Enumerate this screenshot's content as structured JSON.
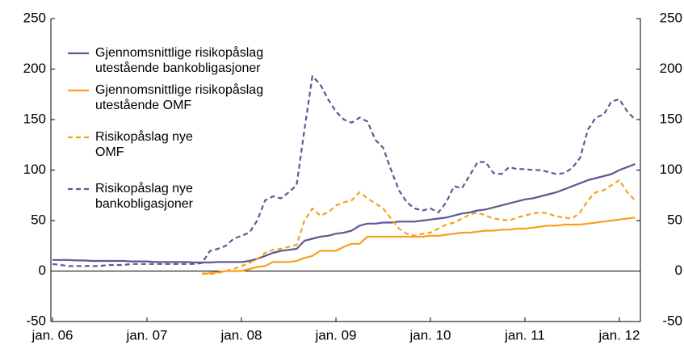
{
  "chart_data": {
    "type": "line",
    "categories": [
      "jan. 06",
      null,
      null,
      null,
      null,
      null,
      null,
      null,
      null,
      null,
      null,
      null,
      "jan. 07",
      null,
      null,
      null,
      null,
      null,
      null,
      null,
      null,
      null,
      null,
      null,
      "jan. 08",
      null,
      null,
      null,
      null,
      null,
      null,
      null,
      null,
      null,
      null,
      null,
      "jan. 09",
      null,
      null,
      null,
      null,
      null,
      null,
      null,
      null,
      null,
      null,
      null,
      "jan. 10",
      null,
      null,
      null,
      null,
      null,
      null,
      null,
      null,
      null,
      null,
      null,
      "jan. 11",
      null,
      null,
      null,
      null,
      null,
      null,
      null,
      null,
      null,
      null,
      null,
      "jan. 12",
      null,
      null
    ],
    "series": [
      {
        "name": "Gjennomsnittlige risikopåslag utestående bankobligasjoner",
        "color": "#5a5a94",
        "dashed": false,
        "values": [
          11,
          11,
          11,
          10.5,
          10.5,
          10,
          10,
          10,
          10,
          10,
          9.5,
          9.5,
          9.5,
          9,
          9,
          9,
          9,
          9,
          8.5,
          8.5,
          8.5,
          9,
          9,
          9,
          9,
          10,
          12,
          15,
          18,
          20,
          21,
          22,
          30,
          32,
          34,
          35,
          37,
          38,
          40,
          45,
          47,
          47,
          48,
          48,
          49,
          49,
          49,
          50,
          51,
          52,
          53,
          55,
          57,
          58,
          60,
          61,
          63,
          65,
          67,
          69,
          71,
          72,
          74,
          76,
          78,
          81,
          84,
          87,
          90,
          92,
          94,
          96,
          100,
          103,
          106
        ]
      },
      {
        "name": "Gjennomsnittlige risikopåslag utestående OMF",
        "color": "#f5a11d",
        "dashed": false,
        "values": [
          null,
          null,
          null,
          null,
          null,
          null,
          null,
          null,
          null,
          null,
          null,
          null,
          null,
          null,
          null,
          null,
          null,
          null,
          null,
          -3,
          -2,
          -1,
          0,
          0,
          0,
          2,
          4,
          5,
          9,
          9,
          9,
          10,
          13,
          15,
          20,
          20,
          20,
          24,
          27,
          27,
          34,
          34,
          34,
          34,
          34,
          34,
          34,
          34,
          35,
          35,
          36,
          37,
          38,
          38,
          39,
          40,
          40,
          41,
          41,
          42,
          42,
          43,
          44,
          45,
          45,
          46,
          46,
          46,
          47,
          48,
          49,
          50,
          51,
          52,
          53
        ]
      },
      {
        "name": "Risikopåslag nye OMF",
        "color": "#f5a11d",
        "dashed": true,
        "values": [
          null,
          null,
          null,
          null,
          null,
          null,
          null,
          null,
          null,
          null,
          null,
          null,
          null,
          null,
          null,
          null,
          null,
          null,
          null,
          -2,
          -3,
          -2,
          0,
          2,
          5,
          8,
          12,
          18,
          21,
          22,
          24,
          26,
          50,
          62,
          55,
          58,
          65,
          68,
          70,
          78,
          72,
          67,
          62,
          52,
          42,
          37,
          35,
          37,
          38,
          42,
          46,
          48,
          52,
          56,
          58,
          55,
          52,
          51,
          50,
          53,
          55,
          57,
          58,
          57,
          54,
          53,
          52,
          58,
          70,
          78,
          80,
          85,
          90,
          78,
          70
        ]
      },
      {
        "name": "Risikopåslag nye bankobligasjoner",
        "color": "#5a5a94",
        "dashed": true,
        "values": [
          7,
          6,
          5,
          5,
          5,
          5,
          5,
          6,
          6,
          6,
          7,
          7,
          7,
          7,
          7,
          7,
          7,
          7,
          7,
          8,
          20,
          22,
          25,
          32,
          35,
          38,
          50,
          70,
          74,
          72,
          78,
          85,
          140,
          193,
          185,
          170,
          158,
          150,
          147,
          152,
          148,
          130,
          122,
          100,
          80,
          68,
          62,
          60,
          62,
          58,
          68,
          84,
          82,
          95,
          108,
          108,
          97,
          96,
          103,
          101,
          101,
          100,
          100,
          98,
          96,
          97,
          102,
          112,
          140,
          152,
          155,
          168,
          170,
          158,
          150
        ]
      }
    ],
    "ylim": [
      -50,
      250
    ],
    "yticks": [
      -50,
      0,
      50,
      100,
      150,
      200,
      250
    ],
    "y2lim": [
      -50,
      250
    ],
    "y2ticks": [
      -50,
      0,
      50,
      100,
      150,
      200,
      250
    ],
    "grid": false
  }
}
